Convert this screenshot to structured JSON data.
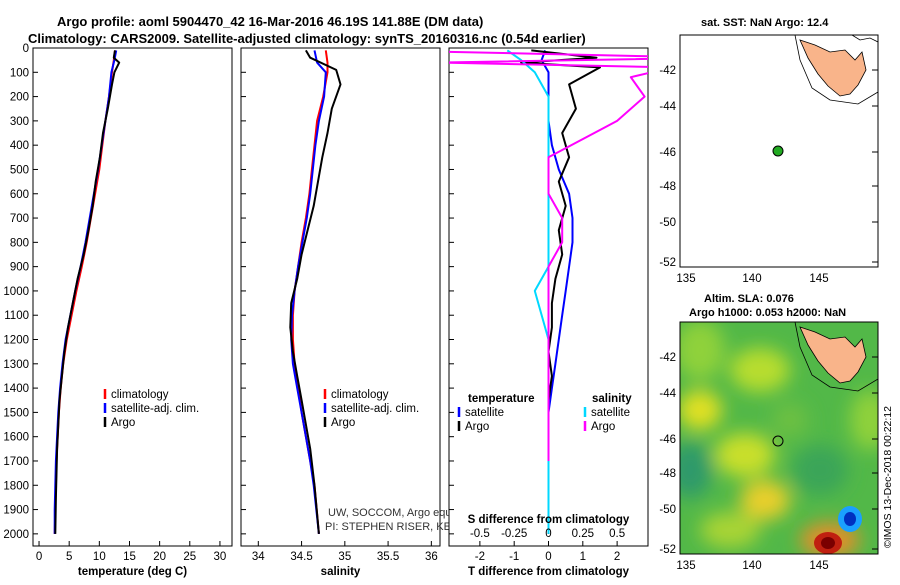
{
  "header": {
    "line1": "Argo profile: aoml 5904470_42 16-Mar-2016 46.19S 141.88E (DM data)",
    "line2": "Climatology: CARS2009. Satellite-adjusted climatology: synTS_20160316.nc (0.54d earlier)"
  },
  "colors": {
    "climatology": "#ff0000",
    "satellite": "#0000ff",
    "argo": "#000000",
    "sal_sat": "#00d8ff",
    "sal_argo": "#ff00ff",
    "land": "#f9b48a",
    "float": "#22aa22"
  },
  "depth_ticks": [
    "0",
    "100",
    "200",
    "300",
    "400",
    "500",
    "600",
    "700",
    "800",
    "900",
    "1000",
    "1100",
    "1200",
    "1300",
    "1400",
    "1500",
    "1600",
    "1700",
    "1800",
    "1900",
    "2000"
  ],
  "chart_data": [
    {
      "type": "line",
      "title": "",
      "xlabel": "temperature (deg C)",
      "ylabel": "depth",
      "xlim": [
        -1,
        32
      ],
      "ylim": [
        2050,
        0
      ],
      "xticks": [
        "0",
        "5",
        "10",
        "15",
        "20",
        "25",
        "30"
      ],
      "xtick_values": [
        0,
        5,
        10,
        15,
        20,
        25,
        30
      ],
      "legend": [
        "climatology",
        "satellite-adj. clim.",
        "Argo"
      ],
      "series": [
        {
          "name": "climatology",
          "color": "#ff0000",
          "x": [
            12.6,
            12.4,
            12.1,
            11.6,
            11.0,
            10.5,
            10.0,
            9.3,
            8.6,
            7.9,
            7.1,
            6.2,
            5.4,
            4.6,
            4.0,
            3.6,
            3.3,
            3.1,
            2.9,
            2.8,
            2.7,
            2.6
          ],
          "y": [
            10,
            50,
            100,
            200,
            300,
            400,
            500,
            600,
            700,
            800,
            900,
            1000,
            1100,
            1200,
            1300,
            1400,
            1500,
            1600,
            1700,
            1800,
            1900,
            2000
          ]
        },
        {
          "name": "satellite-adj. clim.",
          "color": "#0000ff",
          "x": [
            12.8,
            12.5,
            12.0,
            11.6,
            11.0,
            10.4,
            9.8,
            9.1,
            8.4,
            7.7,
            6.9,
            6.0,
            5.2,
            4.4,
            3.9,
            3.5,
            3.2,
            3.0,
            2.8,
            2.7,
            2.6,
            2.6
          ],
          "y": [
            10,
            50,
            100,
            200,
            300,
            400,
            500,
            600,
            700,
            800,
            900,
            1000,
            1100,
            1200,
            1300,
            1400,
            1500,
            1600,
            1700,
            1800,
            1900,
            2000
          ]
        },
        {
          "name": "Argo",
          "color": "#000000",
          "x": [
            12.6,
            12.4,
            13.3,
            12.5,
            12.1,
            11.4,
            10.6,
            10.1,
            9.4,
            8.9,
            8.2,
            7.4,
            6.4,
            5.6,
            4.8,
            4.2,
            3.8,
            3.4,
            3.2,
            3.0,
            2.9,
            2.8,
            2.7
          ],
          "y": [
            10,
            40,
            60,
            100,
            150,
            250,
            350,
            450,
            550,
            650,
            750,
            850,
            950,
            1050,
            1150,
            1250,
            1350,
            1450,
            1550,
            1650,
            1750,
            1850,
            2000
          ]
        }
      ]
    },
    {
      "type": "line",
      "title": "",
      "xlabel": "salinity",
      "ylabel": "depth",
      "xlim": [
        33.8,
        36.1
      ],
      "ylim": [
        2050,
        0
      ],
      "xticks": [
        "34",
        "34.5",
        "35",
        "35.5",
        "36"
      ],
      "xtick_values": [
        34,
        34.5,
        35,
        35.5,
        36
      ],
      "legend": [
        "climatology",
        "satellite-adj. clim.",
        "Argo"
      ],
      "annotations": [
        "UW, SOCCOM, Argo equivalent",
        "PI: STEPHEN RISER, KENNETH JOHNSON"
      ],
      "series": [
        {
          "name": "climatology",
          "color": "#ff0000",
          "x": [
            34.78,
            34.8,
            34.8,
            34.75,
            34.68,
            34.65,
            34.62,
            34.59,
            34.55,
            34.5,
            34.46,
            34.42,
            34.4,
            34.4,
            34.42,
            34.46,
            34.5,
            34.55,
            34.6,
            34.65,
            34.7
          ],
          "y": [
            10,
            60,
            100,
            200,
            300,
            400,
            500,
            600,
            700,
            800,
            900,
            1000,
            1100,
            1200,
            1300,
            1400,
            1500,
            1600,
            1700,
            1800,
            2000
          ]
        },
        {
          "name": "satellite-adj. clim.",
          "color": "#0000ff",
          "x": [
            34.65,
            34.68,
            34.78,
            34.76,
            34.7,
            34.66,
            34.63,
            34.6,
            34.56,
            34.51,
            34.46,
            34.42,
            34.39,
            34.38,
            34.4,
            34.45,
            34.5,
            34.55,
            34.6,
            34.64,
            34.7
          ],
          "y": [
            10,
            60,
            100,
            200,
            300,
            400,
            500,
            600,
            700,
            800,
            900,
            1000,
            1100,
            1200,
            1300,
            1400,
            1500,
            1600,
            1700,
            1800,
            2000
          ]
        },
        {
          "name": "Argo",
          "color": "#000000",
          "x": [
            34.55,
            34.6,
            34.9,
            34.95,
            34.85,
            34.8,
            34.74,
            34.69,
            34.64,
            34.57,
            34.5,
            34.45,
            34.38,
            34.37,
            34.4,
            34.45,
            34.5,
            34.55,
            34.6,
            34.65,
            34.7
          ],
          "y": [
            10,
            40,
            90,
            150,
            250,
            350,
            450,
            550,
            650,
            750,
            850,
            950,
            1050,
            1150,
            1250,
            1350,
            1450,
            1550,
            1650,
            1800,
            2000
          ]
        }
      ]
    },
    {
      "type": "line",
      "title": "",
      "xlabel": "T difference from climatology",
      "xlabel_top": "S difference from climatology",
      "ylabel": "depth",
      "xlim": [
        -2.9,
        2.9
      ],
      "ylim": [
        2050,
        0
      ],
      "xticks": [
        "-2",
        "-1",
        "0",
        "1",
        "2"
      ],
      "xtick_values": [
        -2,
        -1,
        0,
        1,
        2
      ],
      "xticks_top": [
        "-0.5",
        "-0.25",
        "0",
        "0.25",
        "0.5"
      ],
      "legend_title_left": "temperature",
      "legend_title_right": "salinity",
      "legend": [
        "satellite",
        "Argo",
        "satellite",
        "Argo"
      ],
      "series": [
        {
          "name": "temperature satellite",
          "color": "#0000ff",
          "x": [
            -0.1,
            -0.2,
            0.0,
            0.0,
            0.0,
            0.1,
            0.3,
            0.6,
            0.7,
            0.7,
            0.6,
            0.5,
            0.4,
            0.3,
            0.2,
            0.1,
            0.0,
            0.0,
            0.0,
            0.0
          ],
          "y": [
            10,
            50,
            100,
            200,
            300,
            400,
            500,
            600,
            700,
            800,
            900,
            1000,
            1100,
            1200,
            1300,
            1400,
            1500,
            1600,
            1800,
            2000
          ]
        },
        {
          "name": "temperature Argo",
          "color": "#000000",
          "x": [
            -0.5,
            1.4,
            -0.8,
            1.5,
            0.6,
            0.8,
            0.4,
            0.6,
            0.3,
            0.5,
            0.3,
            0.4,
            0.2,
            0.1,
            0.1,
            0.0,
            0.1,
            0.0,
            0.0,
            0.0
          ],
          "y": [
            10,
            40,
            60,
            80,
            150,
            250,
            350,
            450,
            550,
            650,
            750,
            850,
            950,
            1050,
            1150,
            1250,
            1350,
            1450,
            1700,
            2000
          ]
        },
        {
          "name": "salinity satellite",
          "color": "#00d8ff",
          "x": [
            -0.3,
            -0.2,
            -0.1,
            0.0,
            0.0,
            0.0,
            0.0,
            0.0,
            0.0,
            0.0,
            0.0,
            -0.1,
            0.0,
            0.0,
            0.0,
            0.0,
            0.0,
            0.0
          ],
          "y": [
            10,
            50,
            100,
            200,
            300,
            400,
            500,
            600,
            700,
            800,
            900,
            1000,
            1200,
            1400,
            1500,
            1600,
            1800,
            2000
          ]
        },
        {
          "name": "salinity Argo",
          "color": "#ff00ff",
          "x": [
            -1.2,
            1.2,
            -0.8,
            0.9,
            0.6,
            0.7,
            0.5,
            0.0,
            0.0,
            0.1,
            0.1,
            0.0,
            0.0,
            0.0,
            0.0,
            0.0,
            0.0,
            0.0
          ],
          "y": [
            10,
            40,
            60,
            80,
            120,
            200,
            300,
            450,
            600,
            700,
            800,
            900,
            1000,
            1100,
            1200,
            1300,
            1500,
            1700
          ]
        }
      ]
    }
  ],
  "map_top": {
    "title": "sat. SST: NaN Argo: 12.4",
    "xticks": [
      "135",
      "140",
      "145"
    ],
    "yticks": [
      "-42",
      "-44",
      "-46",
      "-48",
      "-50",
      "-52"
    ]
  },
  "map_bottom": {
    "title1": "Altim. SLA: 0.076",
    "title2": "Argo h1000: 0.053 h2000: NaN",
    "xticks": [
      "135",
      "140",
      "145"
    ],
    "yticks": [
      "-42",
      "-44",
      "-46",
      "-48",
      "-50",
      "-52"
    ]
  },
  "watermark": "©IMOS 13-Dec-2018 00:22:12"
}
